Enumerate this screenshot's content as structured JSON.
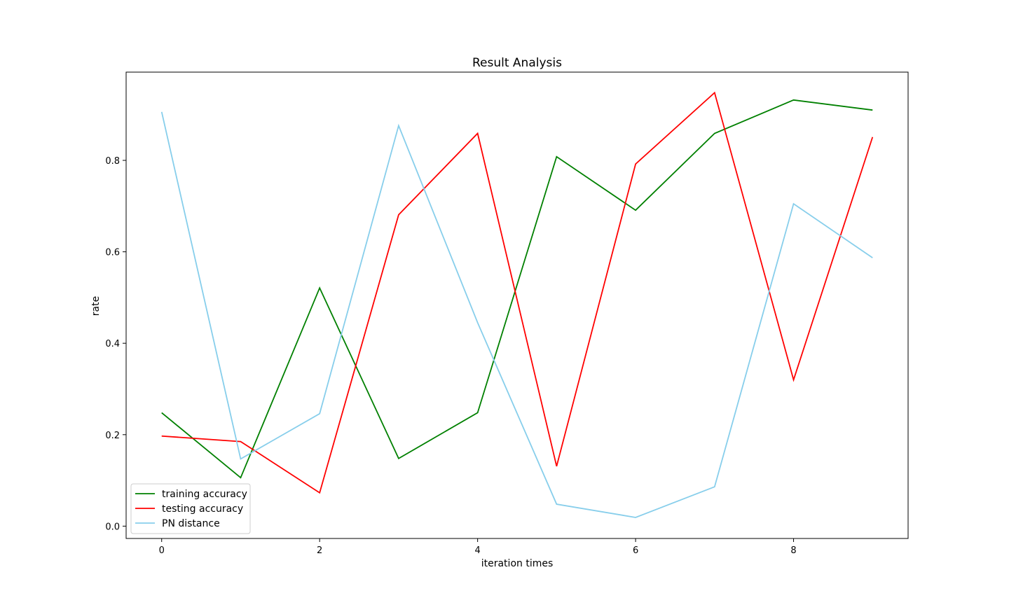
{
  "chart_data": {
    "type": "line",
    "title": "Result Analysis",
    "xlabel": "iteration times",
    "ylabel": "rate",
    "x": [
      0,
      1,
      2,
      3,
      4,
      5,
      6,
      7,
      8,
      9
    ],
    "xlim": [
      -0.45,
      9.45
    ],
    "ylim": [
      -0.027,
      0.993
    ],
    "xticks": [
      0,
      2,
      4,
      6,
      8
    ],
    "yticks": [
      0.0,
      0.2,
      0.4,
      0.6,
      0.8
    ],
    "xtick_labels": [
      "0",
      "2",
      "4",
      "6",
      "8"
    ],
    "ytick_labels": [
      "0.0",
      "0.2",
      "0.4",
      "0.6",
      "0.8"
    ],
    "grid": false,
    "legend_position": "lower-left",
    "series": [
      {
        "name": "training accuracy",
        "color": "#008000",
        "values": [
          0.248,
          0.106,
          0.521,
          0.148,
          0.248,
          0.808,
          0.691,
          0.859,
          0.932,
          0.91
        ]
      },
      {
        "name": "testing accuracy",
        "color": "#ff0000",
        "values": [
          0.197,
          0.185,
          0.073,
          0.681,
          0.859,
          0.131,
          0.792,
          0.948,
          0.32,
          0.851
        ]
      },
      {
        "name": "PN distance",
        "color": "#87ceeb",
        "values": [
          0.906,
          0.147,
          0.246,
          0.876,
          0.445,
          0.048,
          0.019,
          0.086,
          0.705,
          0.587
        ]
      }
    ]
  }
}
